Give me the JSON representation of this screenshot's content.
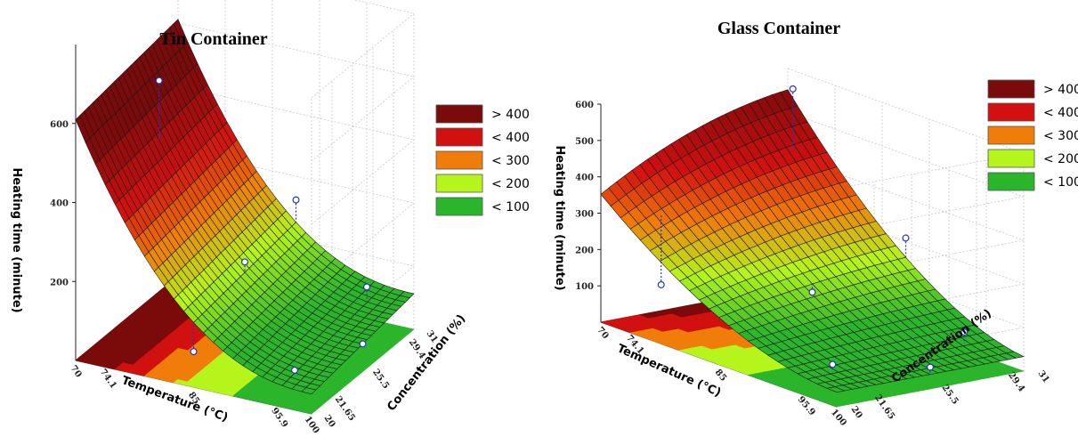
{
  "chart_data": [
    {
      "type": "surface",
      "title": "Tin Container",
      "xlabel": "Temperature (°C)",
      "ylabel": "Concentration (%)",
      "zlabel": "Heating time (minute)",
      "x_ticks": [
        "70",
        "74.1",
        "85",
        "95.9",
        "100"
      ],
      "y_ticks": [
        "20",
        "21.65",
        "25.5",
        "29.4",
        "31"
      ],
      "z_ticks": [
        "200",
        "400",
        "600"
      ],
      "zlim": [
        0,
        800
      ],
      "legend": [
        "> 400",
        "< 400",
        "< 300",
        "< 200",
        "< 100"
      ],
      "legend_position": "top-right",
      "contour_levels": [
        100,
        200,
        300,
        400
      ],
      "colors": [
        "#7b0a0a",
        "#d11010",
        "#f07c0a",
        "#b6f51c",
        "#2bb52b"
      ],
      "series": [
        {
          "name": "design points",
          "points": [
            {
              "x": 74.1,
              "y": 25.5,
              "z": 620
            },
            {
              "x": 85,
              "y": 31,
              "z": 260
            },
            {
              "x": 85,
              "y": 25.5,
              "z": 210
            },
            {
              "x": 85,
              "y": 20,
              "z": 90
            },
            {
              "x": 95.9,
              "y": 29.4,
              "z": 120
            },
            {
              "x": 95.9,
              "y": 21.65,
              "z": 60
            },
            {
              "x": 100,
              "y": 25.5,
              "z": 70
            }
          ]
        }
      ]
    },
    {
      "type": "surface",
      "title": "Glass Container",
      "xlabel": "Temperature (°C)",
      "ylabel": "Concentration (%)",
      "zlabel": "Heating time (minute)",
      "x_ticks": [
        "70",
        "74.1",
        "85",
        "95.9",
        "100"
      ],
      "y_ticks": [
        "20",
        "21.65",
        "25.5",
        "29.4",
        "31"
      ],
      "z_ticks": [
        "100",
        "200",
        "300",
        "400",
        "500",
        "600"
      ],
      "zlim": [
        0,
        600
      ],
      "legend": [
        "> 400",
        "< 400",
        "< 300",
        "< 200",
        "< 100"
      ],
      "legend_position": "top-right",
      "contour_levels": [
        100,
        200,
        300,
        400
      ],
      "colors": [
        "#7b0a0a",
        "#d11010",
        "#f07c0a",
        "#b6f51c",
        "#2bb52b"
      ],
      "series": [
        {
          "name": "design points",
          "points": [
            {
              "x": 74.1,
              "y": 29.4,
              "z": 590
            },
            {
              "x": 85,
              "y": 31,
              "z": 250
            },
            {
              "x": 85,
              "y": 25.5,
              "z": 150
            },
            {
              "x": 74.1,
              "y": 21.65,
              "z": 120
            },
            {
              "x": 95.9,
              "y": 29.4,
              "z": 90
            },
            {
              "x": 95.9,
              "y": 21.65,
              "z": 70
            },
            {
              "x": 100,
              "y": 25.5,
              "z": 60
            }
          ]
        }
      ]
    }
  ]
}
